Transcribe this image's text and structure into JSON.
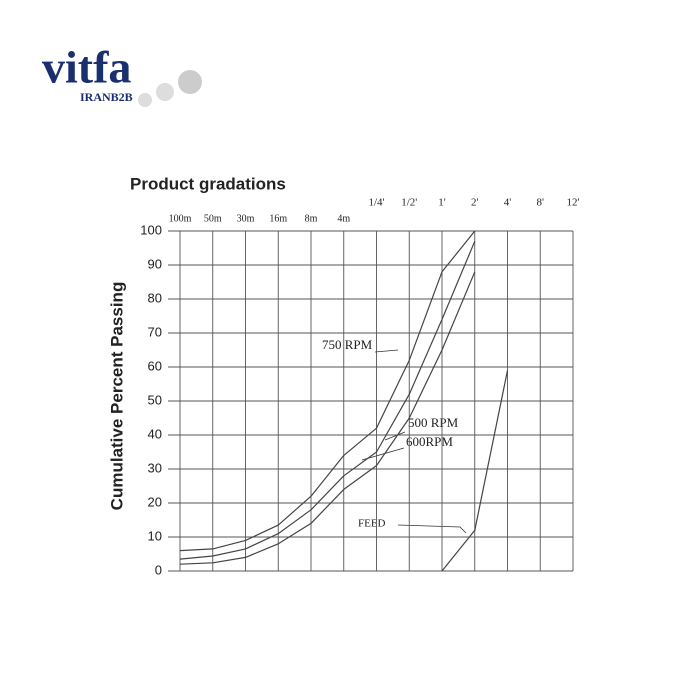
{
  "logo": {
    "text": "vitfa",
    "subtitle": "IRANB2B"
  },
  "chart_data": {
    "type": "line",
    "title": "Product gradations",
    "y_label": "Cumulative Percent Passing",
    "categories": [
      "100m",
      "50m",
      "30m",
      "16m",
      "8m",
      "4m",
      "1/4'",
      "1/2'",
      "1'",
      "2'",
      "4'",
      "8'",
      "12'"
    ],
    "series": [
      {
        "name": "750 RPM",
        "color": "#444",
        "values": [
          6,
          6.5,
          9,
          13.5,
          22,
          34,
          42,
          62,
          88,
          100,
          null,
          null,
          null
        ]
      },
      {
        "name": "500 RPM",
        "color": "#444",
        "values": [
          3.5,
          4.4,
          6.5,
          11,
          18,
          28,
          35,
          52,
          74,
          97,
          null,
          null,
          null
        ]
      },
      {
        "name": "600RPM",
        "color": "#444",
        "values": [
          2,
          2.4,
          4,
          8,
          14,
          24,
          31,
          45,
          65,
          88,
          null,
          null,
          null
        ]
      },
      {
        "name": "FEED",
        "color": "#444",
        "values": [
          null,
          null,
          null,
          null,
          null,
          null,
          null,
          null,
          0,
          12,
          59,
          null,
          null
        ]
      }
    ],
    "ylim": [
      0,
      100
    ],
    "yticks": [
      0,
      10,
      20,
      30,
      40,
      50,
      60,
      70,
      80,
      90,
      100
    ],
    "grid": true
  }
}
